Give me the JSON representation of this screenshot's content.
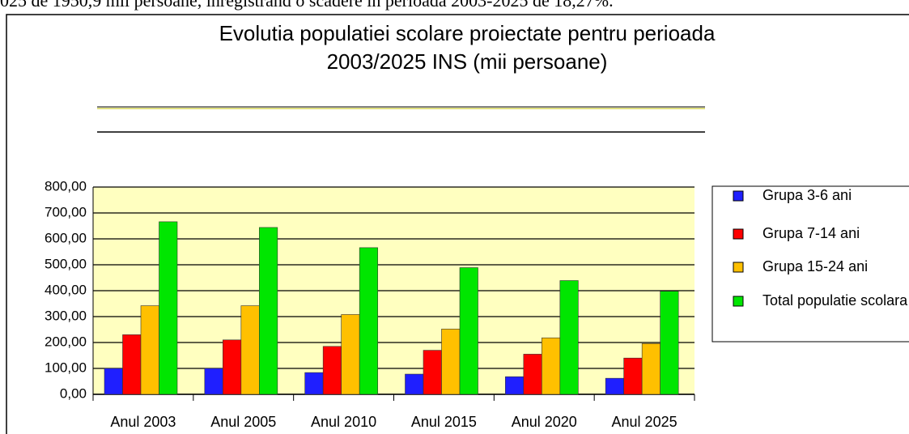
{
  "doc_text": "025 de 1950,9 mii persoane, înregistrând o scădere în perioada 2003-2025 de 18,27%.",
  "chart_data": {
    "type": "bar",
    "title_lines": [
      "Evolutia populatiei scolare proiectate pentru perioada",
      "2003/2025 INS (mii persoane)"
    ],
    "categories": [
      "Anul 2003",
      "Anul 2005",
      "Anul 2010",
      "Anul 2015",
      "Anul 2020",
      "Anul 2025"
    ],
    "series": [
      {
        "name": "Grupa 3-6 ani",
        "color": "#1f1fff",
        "values": [
          100,
          100,
          84,
          78,
          68,
          62
        ]
      },
      {
        "name": "Grupa 7-14 ani",
        "color": "#ff0000",
        "values": [
          230,
          210,
          185,
          170,
          155,
          140
        ]
      },
      {
        "name": "Grupa 15-24 ani",
        "color": "#ffc000",
        "values": [
          342,
          342,
          308,
          252,
          218,
          196
        ]
      },
      {
        "name": "Total populatie scolara",
        "color": "#00e600",
        "values": [
          666,
          644,
          566,
          489,
          439,
          398
        ]
      }
    ],
    "ylim": [
      0,
      800
    ],
    "yticks": [
      {
        "value": 0,
        "label": "0,00"
      },
      {
        "value": 100,
        "label": "100,00"
      },
      {
        "value": 200,
        "label": "200,00"
      },
      {
        "value": 300,
        "label": "300,00"
      },
      {
        "value": 400,
        "label": "400,00"
      },
      {
        "value": 500,
        "label": "500,00"
      },
      {
        "value": 600,
        "label": "600,00"
      },
      {
        "value": 700,
        "label": "700,00"
      },
      {
        "value": 800,
        "label": "800,00"
      }
    ],
    "grid": true,
    "plot_background": "#ffffc0",
    "legend": "right"
  }
}
